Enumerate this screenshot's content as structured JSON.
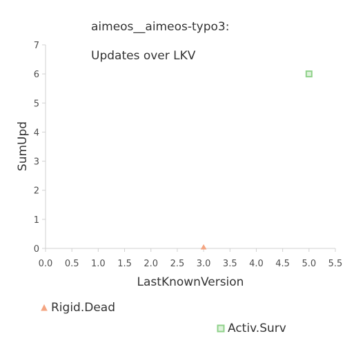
{
  "chart_data": {
    "type": "scatter",
    "title": [
      "aimeos__aimeos-typo3:",
      "Updates over LKV"
    ],
    "xlabel": "LastKnownVersion",
    "ylabel": "SumUpd",
    "xlim": [
      0,
      5.5
    ],
    "ylim": [
      0,
      7
    ],
    "x_ticks": [
      "0.0",
      "0.5",
      "1.0",
      "1.5",
      "2.0",
      "2.5",
      "3.0",
      "3.5",
      "4.0",
      "4.5",
      "5.0",
      "5.5"
    ],
    "y_ticks": [
      "0",
      "1",
      "2",
      "3",
      "4",
      "5",
      "6",
      "7"
    ],
    "grid": false,
    "series": [
      {
        "name": "Rigid.Dead",
        "marker": "triangle",
        "color": "#f4a582",
        "points": [
          {
            "x": 3.0,
            "y": 0
          }
        ]
      },
      {
        "name": "Activ.Surv",
        "marker": "square",
        "color": "#8fd18a",
        "points": [
          {
            "x": 5.0,
            "y": 6
          }
        ]
      }
    ]
  }
}
